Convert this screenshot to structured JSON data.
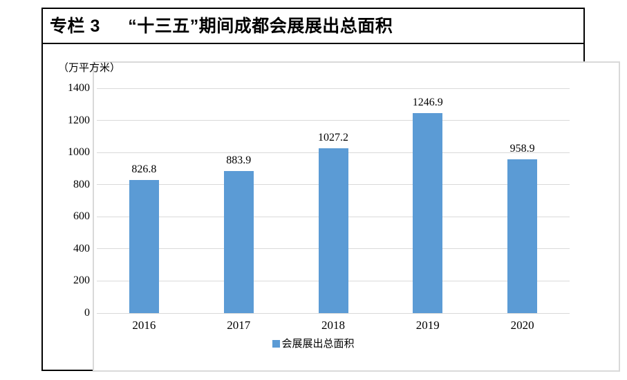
{
  "panel": {
    "title": "专栏 3　  “十三五”期间成都会展展出总面积"
  },
  "chart_data": {
    "type": "bar",
    "title": "专栏 3　  “十三五”期间成都会展展出总面积",
    "unit_label": "（万平方米）",
    "categories": [
      "2016",
      "2017",
      "2018",
      "2019",
      "2020"
    ],
    "values": [
      826.8,
      883.9,
      1027.2,
      1246.9,
      958.9
    ],
    "value_labels": [
      "826.8",
      "883.9",
      "1027.2",
      "1246.9",
      "958.9"
    ],
    "series_name": "会展展出总面积",
    "legend_label": "会展展出总面积",
    "legend_position": "bottom",
    "ylim": [
      0,
      1400
    ],
    "yticks": [
      0,
      200,
      400,
      600,
      800,
      1000,
      1200,
      1400
    ],
    "grid": true,
    "bar_color": "#5b9bd5",
    "gridline_color": "#d9d9d9",
    "frame_color": "#000000",
    "chart_border_color": "#d9d9d9"
  }
}
